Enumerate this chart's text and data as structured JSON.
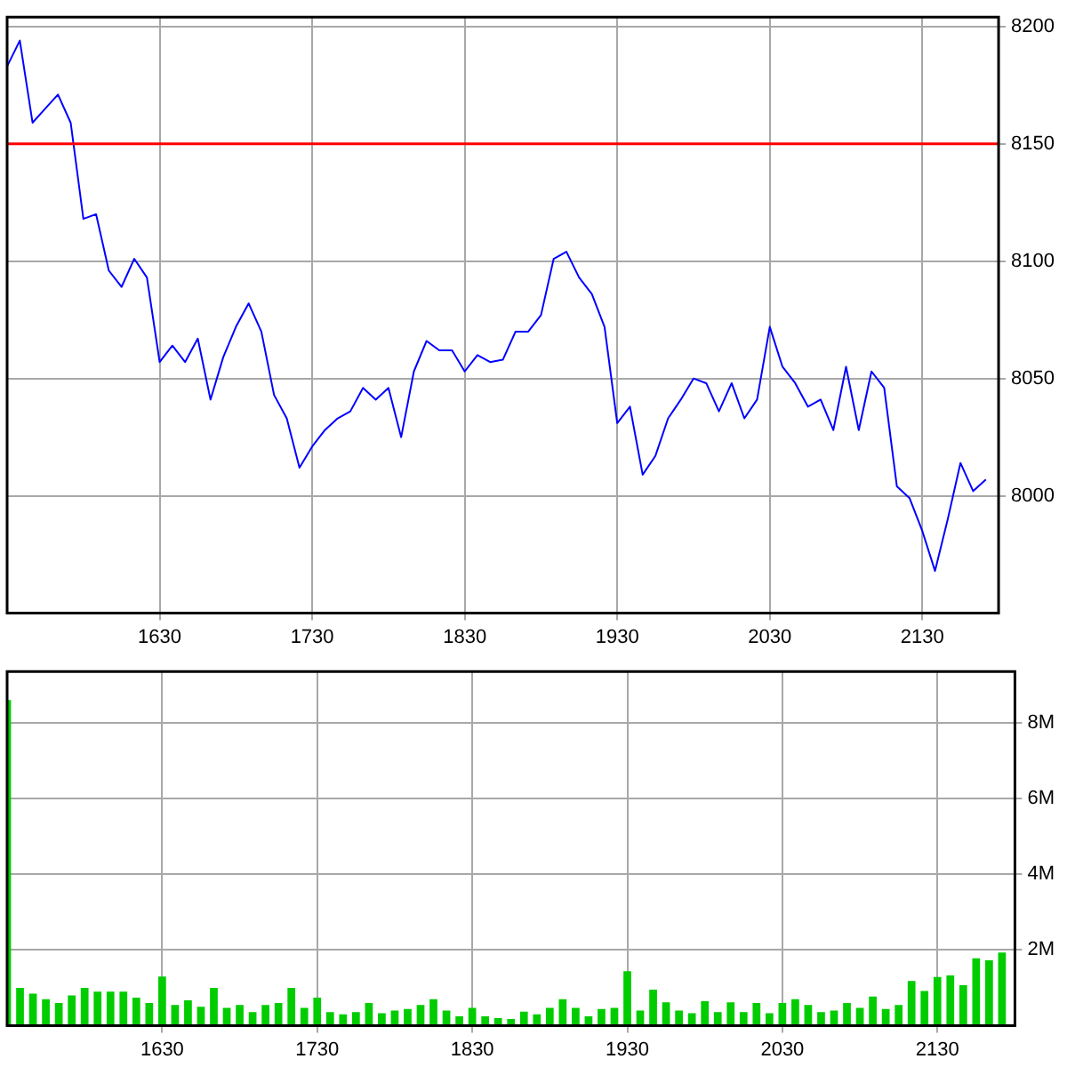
{
  "chart_data": [
    {
      "type": "line",
      "color": "#0000ff",
      "marker": "none",
      "grid": true,
      "categories": [
        null,
        null,
        null,
        null,
        null,
        null,
        null,
        null,
        null,
        null,
        null,
        null,
        "1630",
        null,
        null,
        null,
        null,
        null,
        null,
        null,
        null,
        null,
        null,
        null,
        "1730",
        null,
        null,
        null,
        null,
        null,
        null,
        null,
        null,
        null,
        null,
        null,
        "1830",
        null,
        null,
        null,
        null,
        null,
        null,
        null,
        null,
        null,
        null,
        null,
        "1930",
        null,
        null,
        null,
        null,
        null,
        null,
        null,
        null,
        null,
        null,
        null,
        "2030",
        null,
        null,
        null,
        null,
        null,
        null,
        null,
        null,
        null,
        null,
        null,
        "2130",
        null,
        null,
        null,
        null,
        null,
        null
      ],
      "values": [
        8183,
        8194,
        8159,
        8165,
        8171,
        8159,
        8118,
        8120,
        8096,
        8089,
        8101,
        8093,
        8057,
        8064,
        8057,
        8067,
        8041,
        8059,
        8072,
        8082,
        8070,
        8043,
        8033,
        8012,
        8021,
        8028,
        8033,
        8036,
        8046,
        8041,
        8046,
        8025,
        8053,
        8066,
        8062,
        8062,
        8053,
        8060,
        8057,
        8058,
        8070,
        8070,
        8077,
        8101,
        8104,
        8093,
        8086,
        8072,
        8031,
        8038,
        8009,
        8017,
        8033,
        8041,
        8050,
        8048,
        8036,
        8048,
        8033,
        8041,
        8072,
        8055,
        8048,
        8038,
        8041,
        8028,
        8055,
        8028,
        8053,
        8046,
        8004,
        7999,
        7985,
        7968,
        7990,
        8014,
        8002,
        8007,
        null
      ],
      "ylim": [
        7950,
        8204
      ],
      "yticks": [
        8000,
        8050,
        8100,
        8150,
        8200
      ],
      "ref_lines": [
        {
          "axis": "y",
          "value": 8150,
          "color": "#ff0000"
        }
      ]
    },
    {
      "type": "bar",
      "color": "#00cc00",
      "grid": true,
      "categories": [
        null,
        null,
        null,
        null,
        null,
        null,
        null,
        null,
        null,
        null,
        null,
        null,
        "1630",
        null,
        null,
        null,
        null,
        null,
        null,
        null,
        null,
        null,
        null,
        null,
        "1730",
        null,
        null,
        null,
        null,
        null,
        null,
        null,
        null,
        null,
        null,
        null,
        "1830",
        null,
        null,
        null,
        null,
        null,
        null,
        null,
        null,
        null,
        null,
        null,
        "1930",
        null,
        null,
        null,
        null,
        null,
        null,
        null,
        null,
        null,
        null,
        null,
        "2030",
        null,
        null,
        null,
        null,
        null,
        null,
        null,
        null,
        null,
        null,
        null,
        "2130",
        null,
        null,
        null,
        null,
        null,
        null
      ],
      "values": [
        8.6,
        1.0,
        0.85,
        0.7,
        0.6,
        0.8,
        1.0,
        0.9,
        0.9,
        0.9,
        0.74,
        0.6,
        1.3,
        0.55,
        0.67,
        0.5,
        1.0,
        0.47,
        0.55,
        0.36,
        0.55,
        0.6,
        1.0,
        0.47,
        0.74,
        0.36,
        0.3,
        0.36,
        0.6,
        0.33,
        0.4,
        0.44,
        0.55,
        0.7,
        0.4,
        0.25,
        0.47,
        0.25,
        0.2,
        0.18,
        0.37,
        0.3,
        0.47,
        0.7,
        0.47,
        0.25,
        0.44,
        0.47,
        1.44,
        0.4,
        0.95,
        0.62,
        0.4,
        0.33,
        0.65,
        0.36,
        0.62,
        0.36,
        0.6,
        0.33,
        0.6,
        0.7,
        0.55,
        0.36,
        0.4,
        0.6,
        0.47,
        0.77,
        0.44,
        0.55,
        1.18,
        0.92,
        1.29,
        1.33,
        1.07,
        1.78,
        1.73,
        1.93,
        null
      ],
      "ylim": [
        0,
        9.35
      ],
      "yticks": [
        {
          "value": 2,
          "label": "2M"
        },
        {
          "value": 4,
          "label": "4M"
        },
        {
          "value": 6,
          "label": "6M"
        },
        {
          "value": 8,
          "label": "8M"
        }
      ]
    }
  ]
}
